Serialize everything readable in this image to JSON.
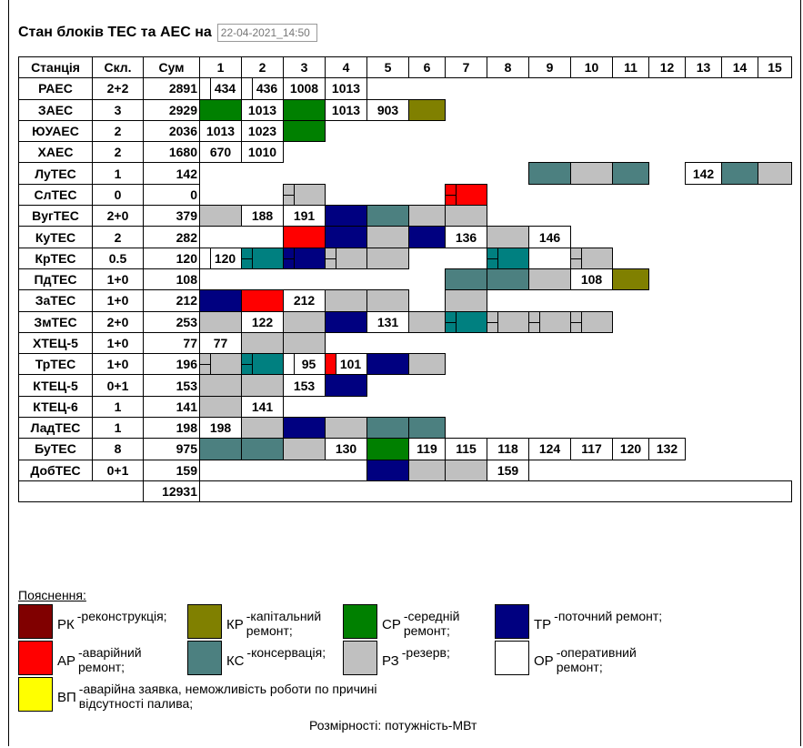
{
  "header": {
    "title": "Стан блоків ТЕС та АЕС на",
    "datetime": "22-04-2021_14:50"
  },
  "columns": {
    "station": "Станція",
    "composition": "Скл.",
    "sum": "Сум",
    "units": [
      "1",
      "2",
      "3",
      "4",
      "5",
      "6",
      "7",
      "8",
      "9",
      "10",
      "11",
      "12",
      "13",
      "14",
      "15"
    ]
  },
  "rows": [
    {
      "name": "РАЕС",
      "skl": "2+2",
      "sum": "2891",
      "cells": [
        {
          "s": "OR",
          "v": "434",
          "sub": "h"
        },
        {
          "s": "OR",
          "v": "436",
          "sub": "h"
        },
        {
          "s": "OR",
          "v": "1008"
        },
        {
          "s": "OR",
          "v": "1013"
        },
        null,
        null,
        null,
        null,
        null,
        null,
        null,
        null,
        null,
        null,
        null
      ]
    },
    {
      "name": "ЗАЕС",
      "skl": "3",
      "sum": "2929",
      "cells": [
        {
          "s": "SR"
        },
        {
          "s": "OR",
          "v": "1013"
        },
        {
          "s": "SR"
        },
        {
          "s": "OR",
          "v": "1013"
        },
        {
          "s": "OR",
          "v": "903"
        },
        {
          "s": "KR"
        },
        null,
        null,
        null,
        null,
        null,
        null,
        null,
        null,
        null
      ]
    },
    {
      "name": "ЮУАЕС",
      "skl": "2",
      "sum": "2036",
      "cells": [
        {
          "s": "OR",
          "v": "1013"
        },
        {
          "s": "OR",
          "v": "1023"
        },
        {
          "s": "SR"
        },
        null,
        null,
        null,
        null,
        null,
        null,
        null,
        null,
        null,
        null,
        null,
        null
      ]
    },
    {
      "name": "ХАЕС",
      "skl": "2",
      "sum": "1680",
      "cells": [
        {
          "s": "OR",
          "v": "670"
        },
        {
          "s": "OR",
          "v": "1010"
        },
        null,
        null,
        null,
        null,
        null,
        null,
        null,
        null,
        null,
        null,
        null,
        null,
        null
      ]
    },
    {
      "name": "ЛуТЕС",
      "skl": "1",
      "sum": "142",
      "cells": [
        null,
        null,
        null,
        null,
        null,
        null,
        null,
        null,
        {
          "s": "KS"
        },
        {
          "s": "RZ"
        },
        {
          "s": "KS"
        },
        null,
        {
          "s": "OR",
          "v": "142"
        },
        {
          "s": "KS"
        },
        {
          "s": "RZ"
        }
      ]
    },
    {
      "name": "СлТЕС",
      "skl": "0",
      "sum": "0",
      "cells": [
        null,
        null,
        {
          "s": "RZ",
          "sub": "x"
        },
        null,
        null,
        null,
        {
          "s": "AR",
          "sub": "x"
        },
        null,
        null,
        null,
        null,
        null,
        null,
        null,
        null
      ]
    },
    {
      "name": "ВугТЕС",
      "skl": "2+0",
      "sum": "379",
      "cells": [
        {
          "s": "RZ"
        },
        {
          "s": "OR",
          "v": "188"
        },
        {
          "s": "OR",
          "v": "191"
        },
        {
          "s": "TR"
        },
        {
          "s": "KS"
        },
        {
          "s": "RZ"
        },
        {
          "s": "RZ"
        },
        null,
        null,
        null,
        null,
        null,
        null,
        null,
        null
      ]
    },
    {
      "name": "КуТЕС",
      "skl": "2",
      "sum": "282",
      "cells": [
        null,
        null,
        {
          "s": "AR"
        },
        {
          "s": "TR"
        },
        {
          "s": "RZ"
        },
        {
          "s": "TR"
        },
        {
          "s": "OR",
          "v": "136"
        },
        {
          "s": "RZ"
        },
        {
          "s": "OR",
          "v": "146"
        },
        null,
        null,
        null,
        null,
        null,
        null
      ]
    },
    {
      "name": "КрТЕС",
      "skl": "0.5",
      "sum": "120",
      "cells": [
        {
          "s": "OR",
          "v": "120",
          "sub": "h"
        },
        {
          "s": "T2",
          "sub": "x"
        },
        {
          "s": "TR",
          "sub": "x"
        },
        {
          "s": "RZ",
          "sub": "x"
        },
        {
          "s": "RZ"
        },
        null,
        null,
        {
          "s": "T2",
          "sub": "x"
        },
        null,
        {
          "s": "RZ",
          "sub": "x"
        },
        null,
        null,
        null,
        null,
        null
      ]
    },
    {
      "name": "ПдТЕС",
      "skl": "1+0",
      "sum": "108",
      "cells": [
        null,
        null,
        null,
        null,
        null,
        null,
        {
          "s": "KS"
        },
        {
          "s": "KS"
        },
        {
          "s": "RZ"
        },
        {
          "s": "OR",
          "v": "108"
        },
        {
          "s": "KR"
        },
        null,
        null,
        null,
        null
      ]
    },
    {
      "name": "ЗаТЕС",
      "skl": "1+0",
      "sum": "212",
      "cells": [
        {
          "s": "TR"
        },
        {
          "s": "AR"
        },
        {
          "s": "OR",
          "v": "212"
        },
        {
          "s": "RZ"
        },
        {
          "s": "RZ"
        },
        null,
        {
          "s": "RZ"
        },
        null,
        null,
        null,
        null,
        null,
        null,
        null,
        null
      ]
    },
    {
      "name": "ЗмТЕС",
      "skl": "2+0",
      "sum": "253",
      "cells": [
        {
          "s": "RZ"
        },
        {
          "s": "OR",
          "v": "122"
        },
        {
          "s": "RZ"
        },
        {
          "s": "TR"
        },
        {
          "s": "OR",
          "v": "131"
        },
        {
          "s": "RZ"
        },
        {
          "s": "T2",
          "sub": "x"
        },
        {
          "s": "RZ",
          "sub": "x"
        },
        {
          "s": "RZ",
          "sub": "x"
        },
        {
          "s": "RZ",
          "sub": "x"
        },
        null,
        null,
        null,
        null,
        null
      ]
    },
    {
      "name": "ХТЕЦ-5",
      "skl": "1+0",
      "sum": "77",
      "cells": [
        {
          "s": "OR",
          "v": "77"
        },
        {
          "s": "RZ"
        },
        {
          "s": "RZ"
        },
        null,
        null,
        null,
        null,
        null,
        null,
        null,
        null,
        null,
        null,
        null,
        null
      ]
    },
    {
      "name": "ТрТЕС",
      "skl": "1+0",
      "sum": "196",
      "cells": [
        {
          "s": "RZ",
          "sub": "x"
        },
        {
          "s": "T2",
          "sub": "x"
        },
        {
          "s": "OR",
          "v": "95",
          "sub": "h"
        },
        {
          "s": "OR",
          "v": "101",
          "sub": "ar"
        },
        {
          "s": "TR"
        },
        {
          "s": "RZ"
        },
        null,
        null,
        null,
        null,
        null,
        null,
        null,
        null,
        null
      ]
    },
    {
      "name": "КТЕЦ-5",
      "skl": "0+1",
      "sum": "153",
      "cells": [
        {
          "s": "RZ"
        },
        {
          "s": "RZ"
        },
        {
          "s": "OR",
          "v": "153"
        },
        {
          "s": "TR"
        },
        null,
        null,
        null,
        null,
        null,
        null,
        null,
        null,
        null,
        null,
        null
      ]
    },
    {
      "name": "КТЕЦ-6",
      "skl": "1",
      "sum": "141",
      "cells": [
        {
          "s": "RZ"
        },
        {
          "s": "OR",
          "v": "141"
        },
        null,
        null,
        null,
        null,
        null,
        null,
        null,
        null,
        null,
        null,
        null,
        null,
        null
      ]
    },
    {
      "name": "ЛадТЕС",
      "skl": "1",
      "sum": "198",
      "cells": [
        {
          "s": "OR",
          "v": "198"
        },
        {
          "s": "RZ"
        },
        {
          "s": "TR"
        },
        {
          "s": "RZ"
        },
        {
          "s": "KS"
        },
        {
          "s": "KS"
        },
        null,
        null,
        null,
        null,
        null,
        null,
        null,
        null,
        null
      ]
    },
    {
      "name": "БуТЕС",
      "skl": "8",
      "sum": "975",
      "cells": [
        {
          "s": "KS"
        },
        {
          "s": "KS"
        },
        {
          "s": "RZ"
        },
        {
          "s": "OR",
          "v": "130"
        },
        {
          "s": "SR"
        },
        {
          "s": "OR",
          "v": "119"
        },
        {
          "s": "OR",
          "v": "115"
        },
        {
          "s": "OR",
          "v": "118"
        },
        {
          "s": "OR",
          "v": "124"
        },
        {
          "s": "OR",
          "v": "117"
        },
        {
          "s": "OR",
          "v": "120"
        },
        {
          "s": "OR",
          "v": "132"
        },
        null,
        null,
        null
      ]
    },
    {
      "name": "ДобТЕС",
      "skl": "0+1",
      "sum": "159",
      "cells": [
        null,
        null,
        null,
        null,
        {
          "s": "TR"
        },
        {
          "s": "RZ"
        },
        {
          "s": "RZ"
        },
        {
          "s": "OR",
          "v": "159"
        },
        null,
        null,
        null,
        null,
        null,
        null,
        null
      ]
    }
  ],
  "total": "12931",
  "legend": {
    "title": "Пояснення:",
    "items": [
      {
        "code": "РК",
        "text": "-реконструкція;",
        "color": "#800000"
      },
      {
        "code": "КР",
        "text": "-капітальний ремонт;",
        "color": "#808000"
      },
      {
        "code": "СР",
        "text": "-середній ремонт;",
        "color": "#008000"
      },
      {
        "code": "ТР",
        "text": "-поточний ремонт;",
        "color": "#000080"
      },
      {
        "code": "АР",
        "text": "-аварійний ремонт;",
        "color": "#ff0000"
      },
      {
        "code": "КС",
        "text": "-консервація;",
        "color": "#4c8080"
      },
      {
        "code": "РЗ",
        "text": "-резерв;",
        "color": "#c0c0c0"
      },
      {
        "code": "ОР",
        "text": "-оперативний ремонт;",
        "color": "#ffffff"
      },
      {
        "code": "ВП",
        "text": "-аварійна заявка, неможливість роботи по причині відсутності палива;",
        "color": "#ffff00"
      }
    ]
  },
  "units_note": "Розмірності: потужність-МВт"
}
